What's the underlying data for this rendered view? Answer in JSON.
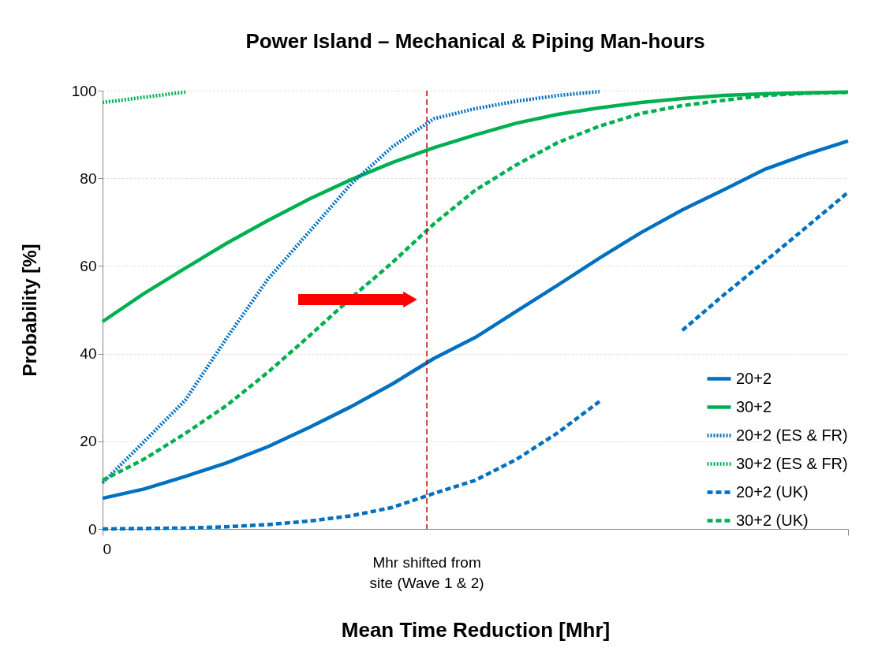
{
  "chart_data": {
    "type": "line",
    "title": "Power Island – Mechanical & Piping Man-hours",
    "xlabel": "Mean Time Reduction [Mhr]",
    "ylabel": "Probability [%]",
    "categories": [
      "0",
      null,
      null,
      null,
      null,
      null,
      null,
      null,
      null,
      null,
      null,
      null,
      null,
      null,
      null,
      null,
      null,
      null,
      null
    ],
    "series": [
      {
        "name": "20+2",
        "color": "#0070c0",
        "line_style": "solid",
        "values": [
          7.0,
          9.1,
          12.0,
          15.1,
          18.8,
          23.2,
          27.9,
          33.1,
          38.9,
          43.7,
          49.7,
          55.7,
          61.8,
          67.6,
          72.8,
          77.4,
          82.1,
          85.5,
          88.5
        ]
      },
      {
        "name": "30+2",
        "color": "#00b050",
        "line_style": "solid",
        "values": [
          47.3,
          53.7,
          59.5,
          65.2,
          70.4,
          75.3,
          79.7,
          83.6,
          87.0,
          89.9,
          92.6,
          94.6,
          96.1,
          97.3,
          98.2,
          98.9,
          99.3,
          99.5,
          99.7
        ]
      },
      {
        "name": "20+2 (ES & FR)",
        "color": "#0070c0",
        "line_style": "dotted",
        "values": [
          10.5,
          19.9,
          29.4,
          43.6,
          57.1,
          67.9,
          78.7,
          87.2,
          93.6,
          95.9,
          97.6,
          98.9,
          99.8,
          null,
          null,
          null,
          null,
          null,
          null
        ]
      },
      {
        "name": "30+2 (ES & FR)",
        "color": "#00b050",
        "line_style": "dotted",
        "values": [
          97.3,
          98.5,
          99.7,
          null,
          null,
          null,
          null,
          null,
          null,
          null,
          null,
          null,
          null,
          null,
          null,
          null,
          null,
          null,
          null
        ]
      },
      {
        "name": "20+2 (UK)",
        "color": "#0070c0",
        "line_style": "dashed",
        "values": [
          0.0,
          0.1,
          0.2,
          0.5,
          1.0,
          1.8,
          3.0,
          4.9,
          8.1,
          11.1,
          15.9,
          22.0,
          29.1,
          null,
          45.3,
          53.4,
          61.1,
          68.9,
          76.8
        ]
      },
      {
        "name": "30+2 (UK)",
        "color": "#00b050",
        "line_style": "dashed",
        "values": [
          11.1,
          15.9,
          21.8,
          28.2,
          35.8,
          44.1,
          52.7,
          60.8,
          69.6,
          77.3,
          83.1,
          88.2,
          91.9,
          94.8,
          96.6,
          97.8,
          98.9,
          99.4,
          99.6
        ]
      }
    ],
    "ylim": [
      0,
      100
    ],
    "yticks": [
      0,
      20,
      40,
      60,
      80,
      100
    ],
    "grid": "y",
    "legend": "bottom right",
    "marker": "none",
    "annotations": [
      "Mhr shifted from\nsite (Wave 1 & 2)"
    ]
  }
}
